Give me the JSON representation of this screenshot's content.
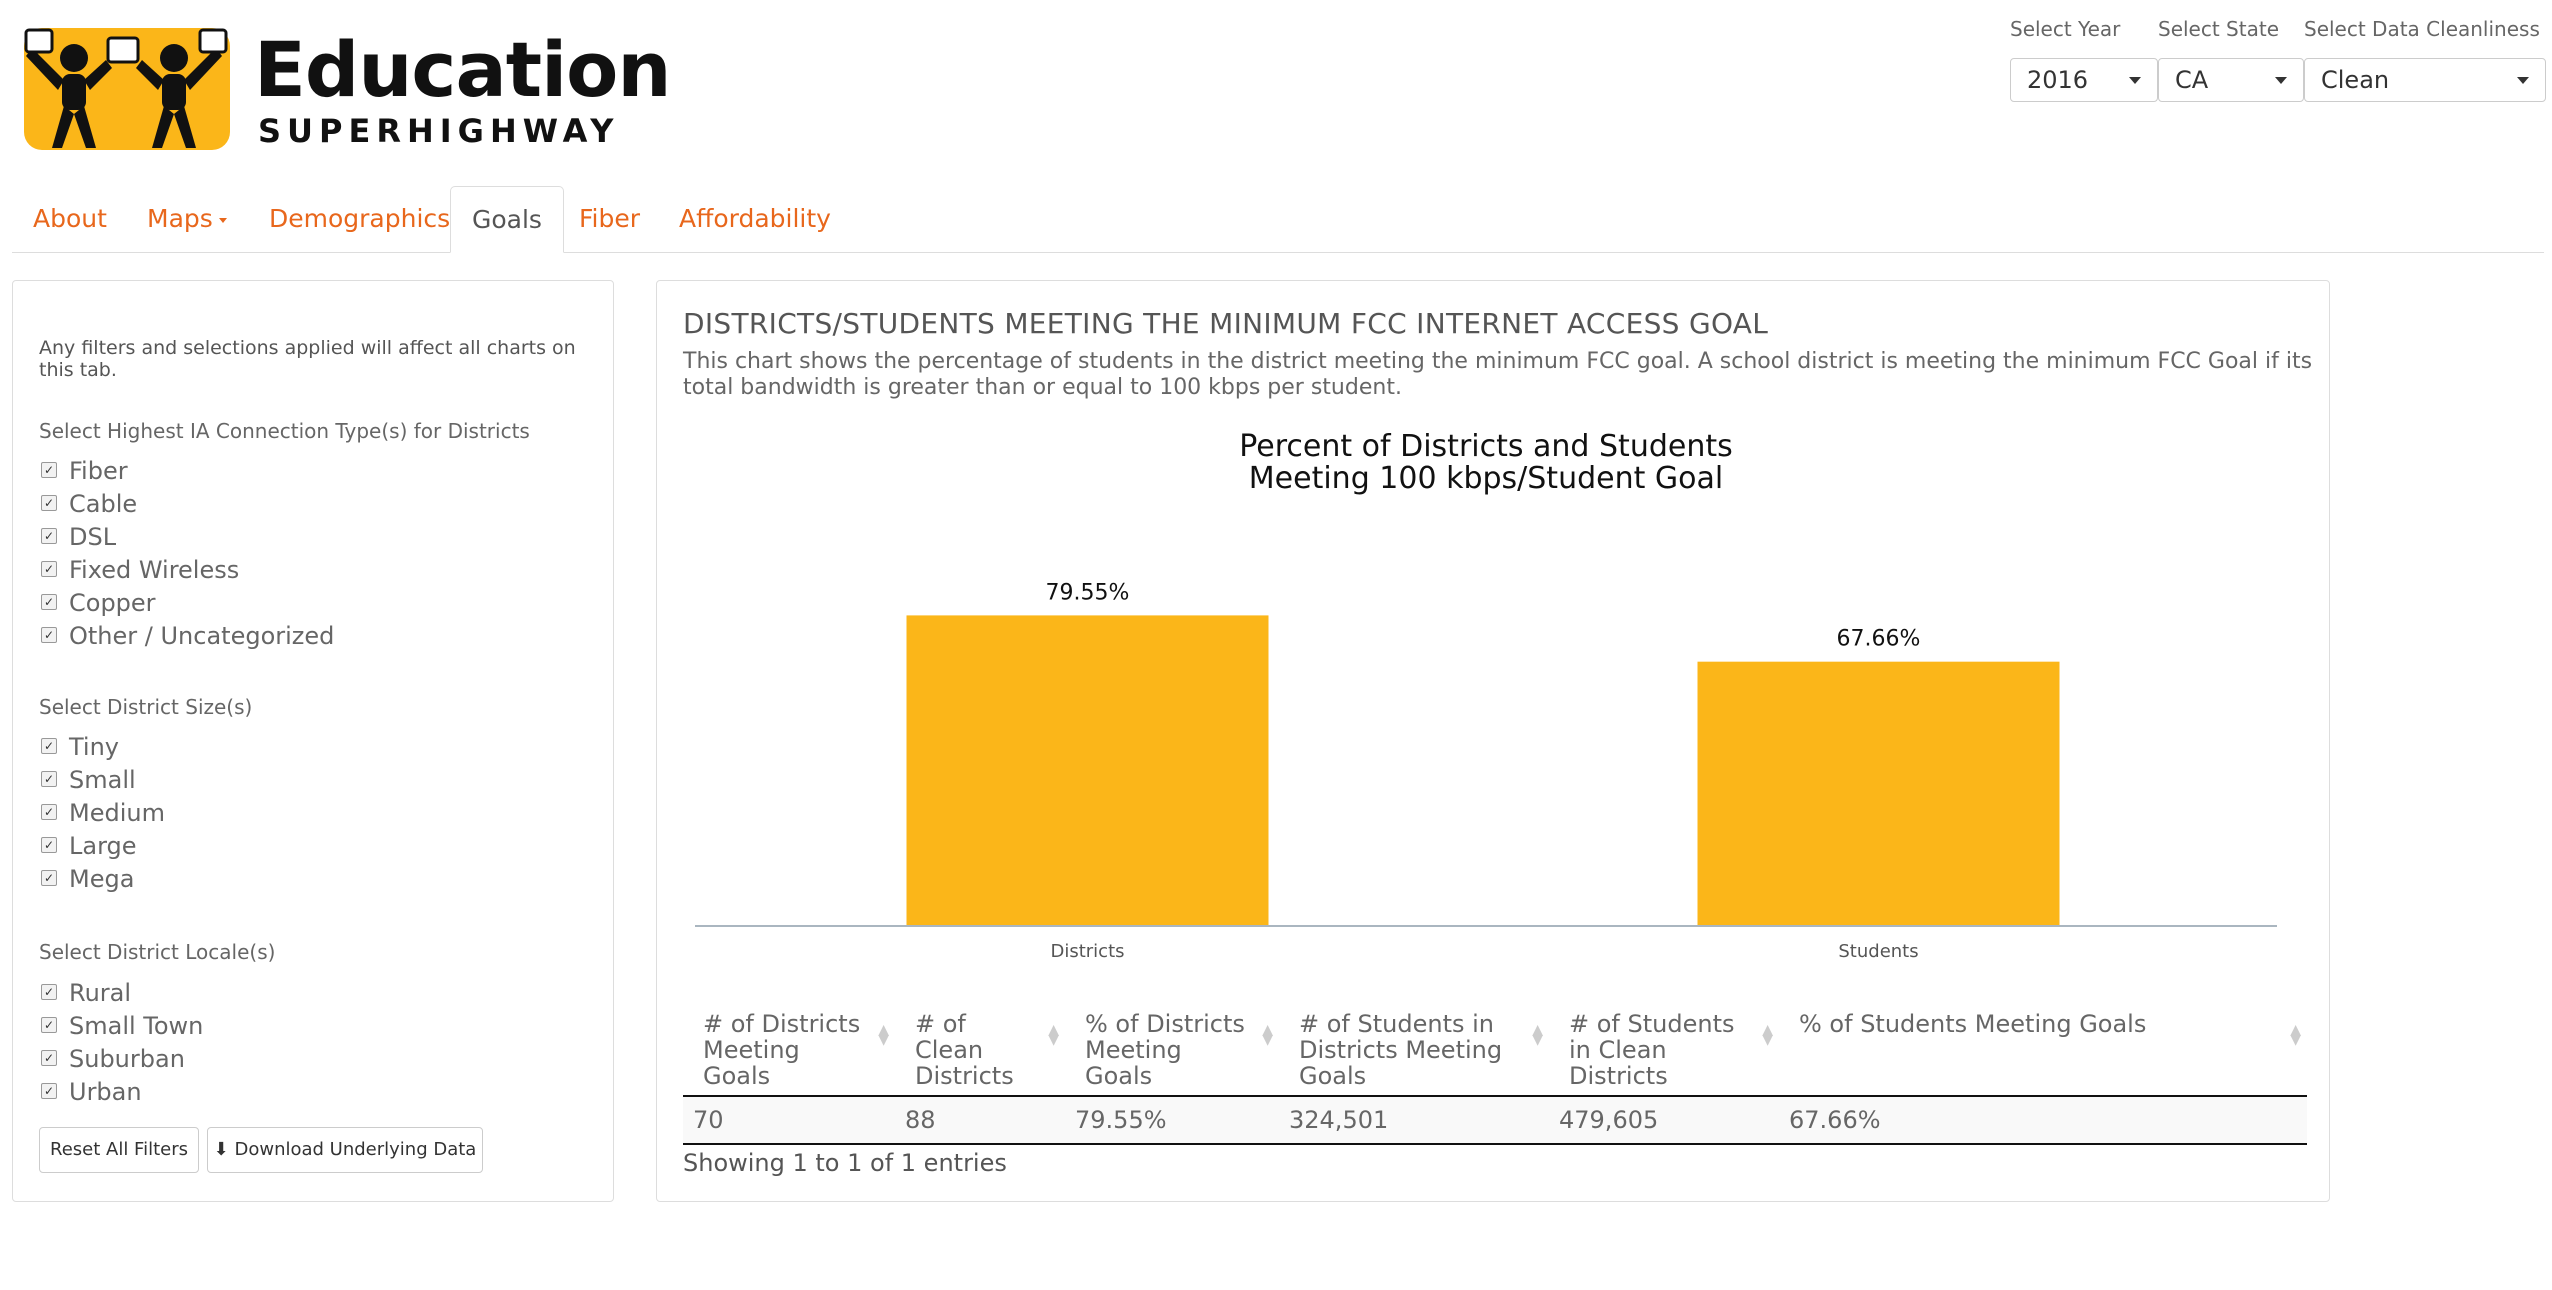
{
  "logo": {
    "title": "Education",
    "subtitle": "SUPERHIGHWAY",
    "badge_color": "#fbb619"
  },
  "selects": [
    {
      "label": "Select Year",
      "value": "2016"
    },
    {
      "label": "Select State",
      "value": "CA"
    },
    {
      "label": "Select Data Cleanliness",
      "value": "Clean"
    }
  ],
  "tabs": [
    {
      "label": "About"
    },
    {
      "label": "Maps"
    },
    {
      "label": "Demographics"
    },
    {
      "label": "Goals"
    },
    {
      "label": "Fiber"
    },
    {
      "label": "Affordability"
    }
  ],
  "sidebar": {
    "note": "Any filters and selections applied will affect all charts on this tab.",
    "connection": {
      "heading": "Select Highest IA Connection Type(s) for Districts",
      "items": [
        "Fiber",
        "Cable",
        "DSL",
        "Fixed Wireless",
        "Copper",
        "Other / Uncategorized"
      ]
    },
    "size": {
      "heading": "Select District Size(s)",
      "items": [
        "Tiny",
        "Small",
        "Medium",
        "Large",
        "Mega"
      ]
    },
    "locale": {
      "heading": "Select District Locale(s)",
      "items": [
        "Rural",
        "Small Town",
        "Suburban",
        "Urban"
      ]
    },
    "reset_label": "Reset All Filters",
    "download_label": "Download Underlying Data"
  },
  "panel": {
    "title": "DISTRICTS/STUDENTS MEETING THE MINIMUM FCC INTERNET ACCESS GOAL",
    "description": "This chart shows the percentage of students in the district meeting the minimum FCC goal. A school district is meeting the minimum FCC Goal if its total bandwidth is greater than or equal to 100 kbps per student."
  },
  "chart_data": {
    "type": "bar",
    "title_lines": [
      "Percent of Districts and Students",
      "Meeting 100 kbps/Student Goal"
    ],
    "categories": [
      "Districts",
      "Students"
    ],
    "values": [
      79.55,
      67.66
    ],
    "data_labels": [
      "79.55%",
      "67.66%"
    ],
    "ylim": [
      0,
      100
    ],
    "color": "#fbb619",
    "grid": false
  },
  "table": {
    "headers": [
      "# of Districts Meeting Goals",
      "# of Clean Districts",
      "% of Districts Meeting Goals",
      "# of Students in Districts Meeting Goals",
      "# of Students in Clean Districts",
      "% of Students Meeting Goals"
    ],
    "rows": [
      [
        "70",
        "88",
        "79.55%",
        "324,501",
        "479,605",
        "67.66%"
      ]
    ],
    "info": "Showing 1 to 1 of 1 entries"
  }
}
